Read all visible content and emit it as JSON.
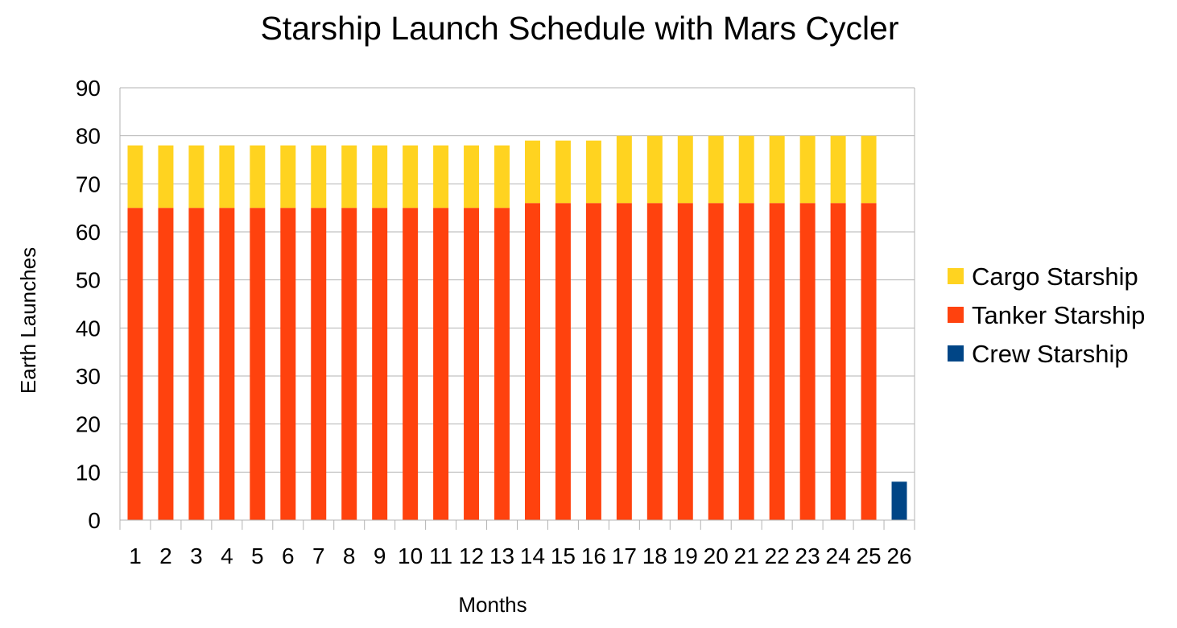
{
  "chart_data": {
    "type": "bar",
    "stacked": true,
    "title": "Starship Launch Schedule with Mars Cycler",
    "xlabel": "Months",
    "ylabel": "Earth Launches",
    "ylim": [
      0,
      90
    ],
    "yticks": [
      0,
      10,
      20,
      30,
      40,
      50,
      60,
      70,
      80,
      90
    ],
    "grid": true,
    "legend_position": "right",
    "categories": [
      "1",
      "2",
      "3",
      "4",
      "5",
      "6",
      "7",
      "8",
      "9",
      "10",
      "11",
      "12",
      "13",
      "14",
      "15",
      "16",
      "17",
      "18",
      "19",
      "20",
      "21",
      "22",
      "23",
      "24",
      "25",
      "26"
    ],
    "series": [
      {
        "name": "Crew Starship",
        "color": "#004586",
        "values": [
          0,
          0,
          0,
          0,
          0,
          0,
          0,
          0,
          0,
          0,
          0,
          0,
          0,
          0,
          0,
          0,
          0,
          0,
          0,
          0,
          0,
          0,
          0,
          0,
          0,
          8
        ]
      },
      {
        "name": "Tanker Starship",
        "color": "#ff420e",
        "values": [
          65,
          65,
          65,
          65,
          65,
          65,
          65,
          65,
          65,
          65,
          65,
          65,
          65,
          66,
          66,
          66,
          66,
          66,
          66,
          66,
          66,
          66,
          66,
          66,
          66,
          0
        ]
      },
      {
        "name": "Cargo Starship",
        "color": "#ffd320",
        "values": [
          13,
          13,
          13,
          13,
          13,
          13,
          13,
          13,
          13,
          13,
          13,
          13,
          13,
          13,
          13,
          13,
          14,
          14,
          14,
          14,
          14,
          14,
          14,
          14,
          14,
          0
        ]
      }
    ],
    "legend_order": [
      "Cargo Starship",
      "Tanker Starship",
      "Crew Starship"
    ]
  }
}
